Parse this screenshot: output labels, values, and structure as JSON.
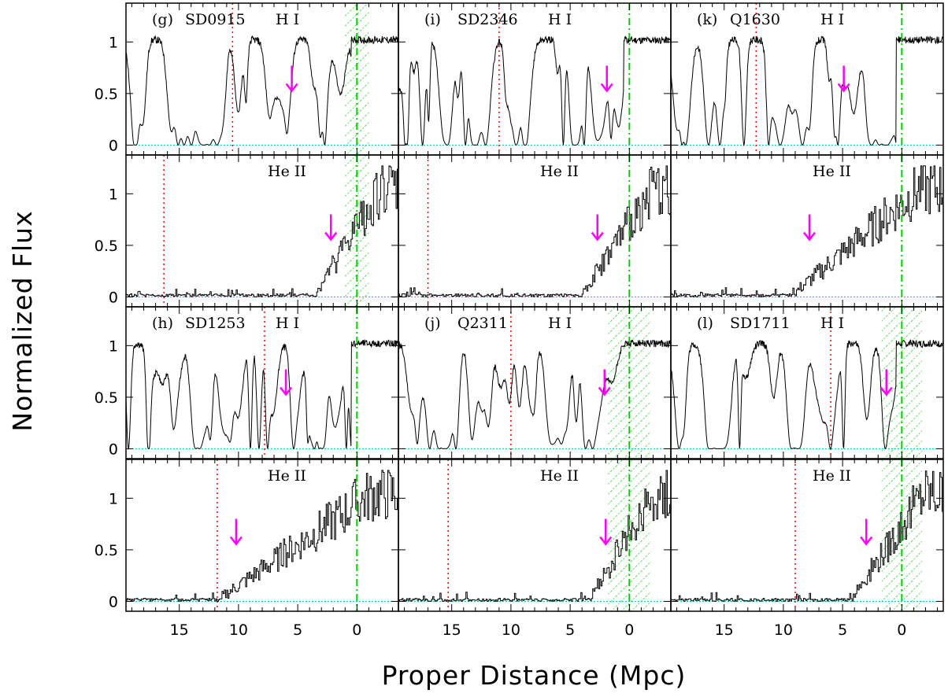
{
  "figure": {
    "ylabel": "Normalized Flux",
    "xlabel": "Proper Distance (Mpc)",
    "colors": {
      "spectrum": "#000000",
      "arrow": "#ff00ff",
      "red_line": "#ff0000",
      "green_line": "#00cc00",
      "hatch": "#00cc00",
      "zero_line": "#00cccc"
    },
    "icon_names": [
      "down-arrow-icon"
    ]
  },
  "chart_data": {
    "type": "line",
    "xlim": [
      19.5,
      -3.5
    ],
    "ylim": [
      -0.05,
      1.3
    ],
    "x_ticks": [
      15,
      10,
      5,
      0
    ],
    "x_tick_labels": [
      "15",
      "10",
      "5",
      "0"
    ],
    "y_ticks": [
      0,
      0.5,
      1
    ],
    "y_tick_labels": [
      "0",
      "0.5",
      "1"
    ],
    "panels": [
      {
        "id": "g",
        "col": 0,
        "row": 0,
        "label": "(g)",
        "name": "SD0915",
        "species": "H I",
        "ion": "HI",
        "red_x": 10.5,
        "arrow_x": 5.5,
        "arrow_y_top": 0.77,
        "green_x": 0,
        "hatch": [
          -1,
          1
        ],
        "seed": 11
      },
      {
        "id": "g2",
        "col": 0,
        "row": 1,
        "label": "",
        "name": "",
        "species": "He II",
        "ion": "HeII",
        "red_x": 16.3,
        "arrow_x": 2.2,
        "arrow_y_top": 0.8,
        "green_x": 0,
        "hatch": [
          -1,
          1
        ],
        "seed": 12
      },
      {
        "id": "h",
        "col": 0,
        "row": 2,
        "label": "(h)",
        "name": "SD1253",
        "species": "H I",
        "ion": "HI",
        "red_x": 7.8,
        "arrow_x": 6.0,
        "arrow_y_top": 0.77,
        "green_x": 0,
        "hatch": null,
        "seed": 13
      },
      {
        "id": "h2",
        "col": 0,
        "row": 3,
        "label": "",
        "name": "",
        "species": "He II",
        "ion": "HeII",
        "red_x": 11.8,
        "arrow_x": 10.2,
        "arrow_y_top": 0.8,
        "green_x": 0,
        "hatch": null,
        "seed": 14
      },
      {
        "id": "i",
        "col": 1,
        "row": 0,
        "label": "(i)",
        "name": "SD2346",
        "species": "H I",
        "ion": "HI",
        "red_x": 11.0,
        "arrow_x": 1.9,
        "arrow_y_top": 0.77,
        "green_x": 0,
        "hatch": null,
        "seed": 21
      },
      {
        "id": "i2",
        "col": 1,
        "row": 1,
        "label": "",
        "name": "",
        "species": "He II",
        "ion": "HeII",
        "red_x": 17.0,
        "arrow_x": 2.7,
        "arrow_y_top": 0.8,
        "green_x": 0,
        "hatch": null,
        "seed": 22
      },
      {
        "id": "j",
        "col": 1,
        "row": 2,
        "label": "(j)",
        "name": "Q2311",
        "species": "H I",
        "ion": "HI",
        "red_x": 10.0,
        "arrow_x": 2.1,
        "arrow_y_top": 0.77,
        "green_x": 0,
        "hatch": [
          -1.8,
          1.8
        ],
        "seed": 23
      },
      {
        "id": "j2",
        "col": 1,
        "row": 3,
        "label": "",
        "name": "",
        "species": "He II",
        "ion": "HeII",
        "red_x": 15.3,
        "arrow_x": 2.0,
        "arrow_y_top": 0.8,
        "green_x": 0,
        "hatch": [
          -1.8,
          1.8
        ],
        "seed": 24
      },
      {
        "id": "k",
        "col": 2,
        "row": 0,
        "label": "(k)",
        "name": "Q1630",
        "species": "H I",
        "ion": "HI",
        "red_x": 12.3,
        "arrow_x": 4.9,
        "arrow_y_top": 0.77,
        "green_x": 0,
        "hatch": null,
        "seed": 31
      },
      {
        "id": "k2",
        "col": 2,
        "row": 1,
        "label": "",
        "name": "",
        "species": "He II",
        "ion": "HeII",
        "red_x": 19.5,
        "arrow_x": 7.8,
        "arrow_y_top": 0.8,
        "green_x": 0,
        "hatch": null,
        "seed": 32
      },
      {
        "id": "l",
        "col": 2,
        "row": 2,
        "label": "(l)",
        "name": "SD1711",
        "species": "H I",
        "ion": "HI",
        "red_x": 6.0,
        "arrow_x": 1.3,
        "arrow_y_top": 0.77,
        "green_x": 0,
        "hatch": [
          -1.7,
          1.7
        ],
        "seed": 33
      },
      {
        "id": "l2",
        "col": 2,
        "row": 3,
        "label": "",
        "name": "",
        "species": "He II",
        "ion": "HeII",
        "red_x": 9.0,
        "arrow_x": 3.0,
        "arrow_y_top": 0.8,
        "green_x": 0,
        "hatch": [
          -1.7,
          1.7
        ],
        "seed": 34
      }
    ]
  }
}
